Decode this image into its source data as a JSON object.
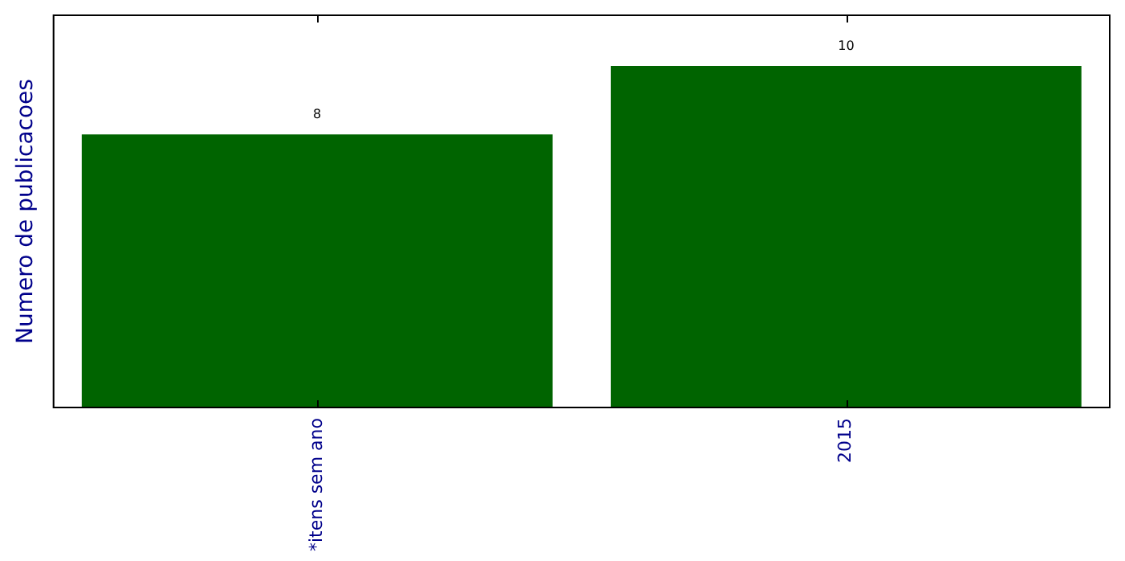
{
  "chart_data": {
    "type": "bar",
    "ylabel": "Numero de publicacoes",
    "categories": [
      "*itens sem ano",
      "2015"
    ],
    "values": [
      8,
      10
    ],
    "color": "#006400",
    "ylim": [
      0,
      11.5
    ],
    "tick_labels": "x",
    "data_labels": true,
    "grid": false,
    "legend": false
  }
}
